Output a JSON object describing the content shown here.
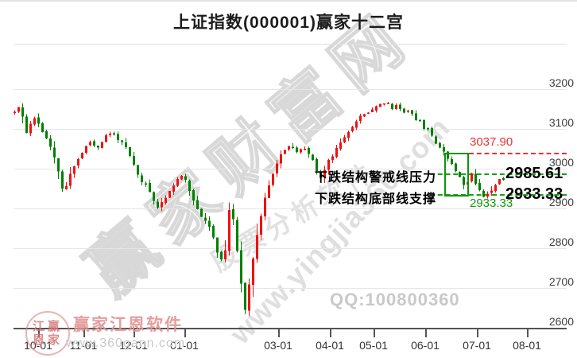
{
  "chart_data": {
    "type": "candlestick",
    "title": "上证指数(000001)赢家十二宫",
    "symbol": "000001",
    "index_name": "上证指数",
    "module_name": "赢家十二宫",
    "y_axis": {
      "min": 2600,
      "max": 3200,
      "step": 100,
      "tick_labels": [
        "3200",
        "3100",
        "3000",
        "2900",
        "2800",
        "2700",
        "2600"
      ]
    },
    "x_axis": {
      "tick_labels": [
        "10-01",
        "11-01",
        "12-01",
        "01-01",
        "03-01",
        "04-01",
        "05-01",
        "06-01",
        "07-01",
        "08-01"
      ],
      "tick_x": [
        48,
        105,
        168,
        232,
        350,
        415,
        470,
        535,
        600,
        663
      ]
    },
    "grid": true,
    "key_levels": {
      "warning": 3037.9,
      "pressure": 2985.61,
      "support": 2933.33
    },
    "price_path_anchors": [
      [
        16,
        3140
      ],
      [
        24,
        3152
      ],
      [
        30,
        3118
      ],
      [
        34,
        3082
      ],
      [
        40,
        3134
      ],
      [
        48,
        3114
      ],
      [
        56,
        3082
      ],
      [
        64,
        3048
      ],
      [
        73,
        2994
      ],
      [
        80,
        2932
      ],
      [
        88,
        2988
      ],
      [
        96,
        3018
      ],
      [
        105,
        3048
      ],
      [
        113,
        3068
      ],
      [
        122,
        3052
      ],
      [
        131,
        3078
      ],
      [
        140,
        3090
      ],
      [
        150,
        3074
      ],
      [
        158,
        3048
      ],
      [
        166,
        3018
      ],
      [
        175,
        2972
      ],
      [
        184,
        2958
      ],
      [
        192,
        2922
      ],
      [
        200,
        2902
      ],
      [
        208,
        2932
      ],
      [
        216,
        2952
      ],
      [
        224,
        2978
      ],
      [
        232,
        2974
      ],
      [
        240,
        2942
      ],
      [
        248,
        2894
      ],
      [
        256,
        2878
      ],
      [
        264,
        2848
      ],
      [
        270,
        2818
      ],
      [
        277,
        2760
      ],
      [
        283,
        2800
      ],
      [
        289,
        2908
      ],
      [
        295,
        2848
      ],
      [
        300,
        2758
      ],
      [
        305,
        2688
      ],
      [
        308,
        2648
      ],
      [
        312,
        2698
      ],
      [
        318,
        2778
      ],
      [
        325,
        2854
      ],
      [
        332,
        2914
      ],
      [
        340,
        2978
      ],
      [
        348,
        3014
      ],
      [
        356,
        3046
      ],
      [
        364,
        3058
      ],
      [
        372,
        3038
      ],
      [
        380,
        3054
      ],
      [
        388,
        3038
      ],
      [
        396,
        3008
      ],
      [
        404,
        2974
      ],
      [
        412,
        3018
      ],
      [
        420,
        3042
      ],
      [
        428,
        3068
      ],
      [
        436,
        3094
      ],
      [
        444,
        3108
      ],
      [
        452,
        3128
      ],
      [
        460,
        3138
      ],
      [
        468,
        3154
      ],
      [
        476,
        3162
      ],
      [
        484,
        3166
      ],
      [
        492,
        3154
      ],
      [
        500,
        3158
      ],
      [
        508,
        3142
      ],
      [
        516,
        3150
      ],
      [
        524,
        3122
      ],
      [
        532,
        3108
      ],
      [
        540,
        3094
      ],
      [
        548,
        3068
      ],
      [
        556,
        3048
      ],
      [
        562,
        3032
      ],
      [
        570,
        3008
      ],
      [
        578,
        2982
      ],
      [
        586,
        2948
      ],
      [
        592,
        2994
      ],
      [
        598,
        2966
      ],
      [
        604,
        2948
      ],
      [
        610,
        2928
      ],
      [
        616,
        2942
      ],
      [
        622,
        2962
      ],
      [
        628,
        2970
      ],
      [
        634,
        2974
      ]
    ],
    "extreme_low": 2634
  },
  "annotations": {
    "warning_value": "3037.90",
    "pressure_label": "下跌结构警戒线压力",
    "support_label": "下跌结构底部线支撑",
    "pressure_value": "2985.61",
    "support_value": "2933.33",
    "box_low_value": "2933.33"
  },
  "watermarks": {
    "main": "赢家财富网",
    "sub": "股票分析软件",
    "url": "www.yingjia360.com",
    "qq": "QQ:100800360",
    "brand": "赢家江恩软件",
    "brand_url": "www.360gann.com",
    "stamp_line1": "江赢",
    "stamp_line2": "恩家"
  },
  "colors": {
    "up": "#ee1111",
    "down": "#008000",
    "warning_line": "#ff2a2a",
    "level_line": "#12a312",
    "box_border": "#0c960c",
    "grid": "#e6e6e6",
    "axis": "#555555",
    "tick_text": "#3e3e3e",
    "red_text": "#f23030",
    "green_text": "#0c9a0c"
  }
}
